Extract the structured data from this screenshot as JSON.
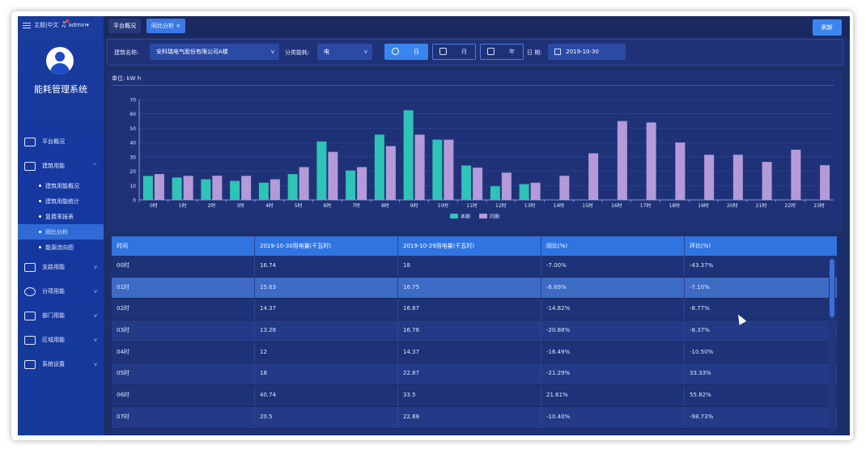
{
  "topbar": {
    "theme": "主题",
    "lang": "中文",
    "user": "admin"
  },
  "sidebar": {
    "title": "能耗管理系统",
    "items": [
      {
        "label": "平台概况"
      },
      {
        "label": "建筑用能"
      },
      {
        "label": "支路用能"
      },
      {
        "label": "分项用能"
      },
      {
        "label": "部门用能"
      },
      {
        "label": "区域用能"
      },
      {
        "label": "系统设置"
      }
    ],
    "subitems": [
      {
        "label": "建筑用能概况"
      },
      {
        "label": "建筑用能统计"
      },
      {
        "label": "复费率报表"
      },
      {
        "label": "同比分析"
      },
      {
        "label": "能源流向图"
      }
    ]
  },
  "tabs": [
    {
      "label": "平台概况"
    },
    {
      "label": "同比分析 ×"
    }
  ],
  "refresh_label": "刷新",
  "filter": {
    "building_label": "建筑名称:",
    "building_value": "安科瑞电气股份有限公司A楼",
    "energy_label": "分类能耗:",
    "energy_value": "电",
    "day_label": "日",
    "month_label": "月",
    "year_label": "年",
    "date_label": "日 期:",
    "date_value": "2019-10-30"
  },
  "chart": {
    "unit": "单位: kW h"
  },
  "chart_data": {
    "type": "bar",
    "categories": [
      "0时",
      "1时",
      "2时",
      "3时",
      "4时",
      "5时",
      "6时",
      "7时",
      "8时",
      "9时",
      "10时",
      "11时",
      "12时",
      "13时",
      "14时",
      "15时",
      "16时",
      "17时",
      "18时",
      "19时",
      "20时",
      "21时",
      "22时",
      "23时"
    ],
    "series": [
      {
        "name": "本期",
        "color": "#2ec4b6",
        "values": [
          16.74,
          15.63,
          14.37,
          13.26,
          12,
          18,
          40.74,
          20.5,
          45.5,
          62.5,
          42,
          24,
          9.5,
          11,
          null,
          null,
          null,
          null,
          null,
          null,
          null,
          null,
          null,
          null
        ]
      },
      {
        "name": "同期",
        "color": "#b49ad8",
        "values": [
          18,
          16.75,
          16.87,
          16.76,
          14.37,
          22.87,
          33.5,
          22.88,
          37.5,
          45.5,
          42,
          22.5,
          19,
          12,
          16.8,
          32.5,
          55,
          54,
          40,
          31.5,
          31.5,
          26.5,
          35,
          24.2
        ]
      }
    ],
    "ylim": [
      0,
      70
    ],
    "yticks": [
      0,
      10,
      20,
      30,
      40,
      50,
      60,
      70
    ],
    "legend": "bottom"
  },
  "table": {
    "headers": [
      "时间",
      "2019-10-30用电量(千瓦时)",
      "2019-10-29用电量(千瓦时)",
      "同比(%)",
      "环比(%)"
    ],
    "rows": [
      [
        "00时",
        "16.74",
        "18",
        "-7.00%",
        "-43.37%"
      ],
      [
        "01时",
        "15.63",
        "16.75",
        "-6.69%",
        "-7.10%"
      ],
      [
        "02时",
        "14.37",
        "16.87",
        "-14.82%",
        "-8.77%"
      ],
      [
        "03时",
        "13.26",
        "16.76",
        "-20.88%",
        "-8.37%"
      ],
      [
        "04时",
        "12",
        "14.37",
        "-16.49%",
        "-10.50%"
      ],
      [
        "05时",
        "18",
        "22.87",
        "-21.29%",
        "33.33%"
      ],
      [
        "06时",
        "40.74",
        "33.5",
        "21.61%",
        "55.82%"
      ],
      [
        "07时",
        "20.5",
        "22.88",
        "-10.40%",
        "-98.73%"
      ]
    ]
  }
}
